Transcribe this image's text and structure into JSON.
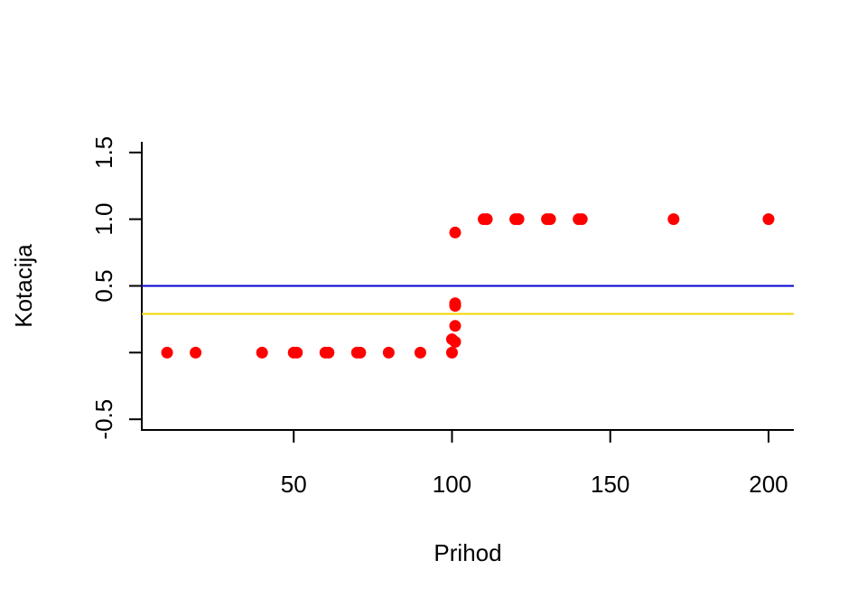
{
  "chart_data": {
    "type": "scatter",
    "title": "",
    "xlabel": "Prihod",
    "ylabel": "Kotacija",
    "xlim": [
      2,
      208
    ],
    "ylim": [
      -0.58,
      1.58
    ],
    "x_ticks": [
      50,
      100,
      150,
      200
    ],
    "x_tick_labels": [
      "50",
      "100",
      "150",
      "200"
    ],
    "y_ticks": [
      -0.5,
      0,
      0.5,
      1.0,
      1.5
    ],
    "y_tick_labels": [
      "-0.5",
      "",
      "0.5",
      "1.0",
      "1.5"
    ],
    "grid": false,
    "legend": "none",
    "series": [
      {
        "point_color": "#FF0000",
        "points": [
          {
            "x": 10,
            "y": 0
          },
          {
            "x": 19,
            "y": 0
          },
          {
            "x": 40,
            "y": 0
          },
          {
            "x": 50,
            "y": 0
          },
          {
            "x": 51,
            "y": 0
          },
          {
            "x": 60,
            "y": 0
          },
          {
            "x": 61,
            "y": 0
          },
          {
            "x": 70,
            "y": 0
          },
          {
            "x": 71,
            "y": 0
          },
          {
            "x": 80,
            "y": 0
          },
          {
            "x": 90,
            "y": 0
          },
          {
            "x": 100,
            "y": 0
          },
          {
            "x": 101,
            "y": 0.08
          },
          {
            "x": 100,
            "y": 0.1
          },
          {
            "x": 101,
            "y": 0.2
          },
          {
            "x": 101,
            "y": 0.35
          },
          {
            "x": 101,
            "y": 0.37
          },
          {
            "x": 101,
            "y": 0.9
          },
          {
            "x": 110,
            "y": 1
          },
          {
            "x": 111,
            "y": 1
          },
          {
            "x": 120,
            "y": 1
          },
          {
            "x": 121,
            "y": 1
          },
          {
            "x": 130,
            "y": 1
          },
          {
            "x": 131,
            "y": 1
          },
          {
            "x": 140,
            "y": 1
          },
          {
            "x": 141,
            "y": 1
          },
          {
            "x": 170,
            "y": 1
          },
          {
            "x": 200,
            "y": 1
          }
        ]
      }
    ],
    "reference_lines": [
      {
        "y": 0.5,
        "color": "#0000CC"
      },
      {
        "y": 0.29,
        "color": "#F2D600"
      }
    ]
  }
}
